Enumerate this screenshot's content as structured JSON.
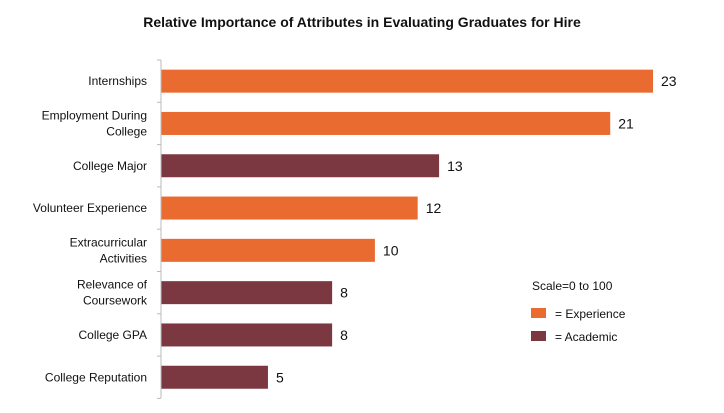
{
  "chart_data": {
    "type": "bar",
    "orientation": "horizontal",
    "title": "Relative Importance of Attributes in Evaluating Graduates for Hire",
    "categories": [
      [
        "Internships"
      ],
      [
        "Employment During",
        "College"
      ],
      [
        "College Major"
      ],
      [
        "Volunteer Experience"
      ],
      [
        "Extracurricular",
        "Activities"
      ],
      [
        "Relevance of",
        "Coursework"
      ],
      [
        "College GPA"
      ],
      [
        "College Reputation"
      ]
    ],
    "values": [
      23,
      21,
      13,
      12,
      10,
      8,
      8,
      5
    ],
    "groups": [
      "Experience",
      "Experience",
      "Academic",
      "Experience",
      "Experience",
      "Academic",
      "Academic",
      "Academic"
    ],
    "xlim": [
      0,
      23
    ],
    "grid": false,
    "annotation": "Scale=0 to 100",
    "legend": {
      "placement": "right",
      "items": [
        {
          "key": "Experience",
          "label": "= Experience",
          "color": "#E96B30"
        },
        {
          "key": "Academic",
          "label": "= Academic",
          "color": "#7B3841"
        }
      ]
    }
  }
}
